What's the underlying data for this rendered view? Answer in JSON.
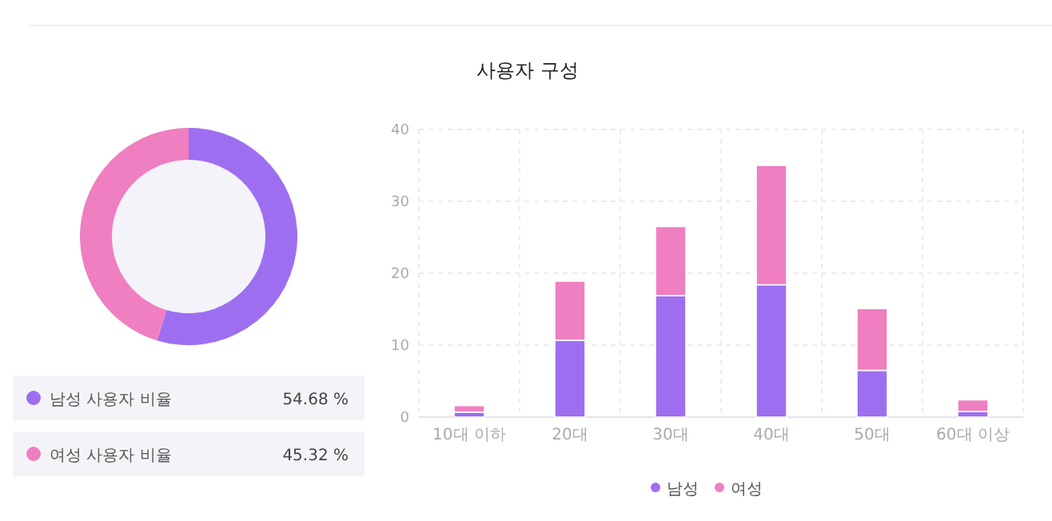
{
  "chart_data": [
    {
      "type": "donut",
      "categories": [
        "남성 사용자 비율",
        "여성 사용자 비율"
      ],
      "values": [
        54.68,
        45.32
      ],
      "colors": [
        "#9d6ff0",
        "#ef7fc0"
      ],
      "value_labels": [
        "54.68 %",
        "45.32 %"
      ],
      "legend": "bottom"
    },
    {
      "type": "bar",
      "title": "사용자 구성",
      "categories": [
        "10대 이하",
        "20대",
        "30대",
        "40대",
        "50대",
        "60대 이상"
      ],
      "stacked": true,
      "ylim": [
        0,
        40
      ],
      "yticks": [
        0,
        10,
        20,
        30,
        40
      ],
      "grid": true,
      "legend": "bottom",
      "series": [
        {
          "name": "남성",
          "color": "#9d6ff0",
          "values": [
            0.7,
            10.7,
            16.9,
            18.4,
            6.5,
            0.8
          ]
        },
        {
          "name": "여성",
          "color": "#ef7fc0",
          "values": [
            0.9,
            8.2,
            9.6,
            16.6,
            8.6,
            1.6
          ]
        }
      ]
    }
  ]
}
